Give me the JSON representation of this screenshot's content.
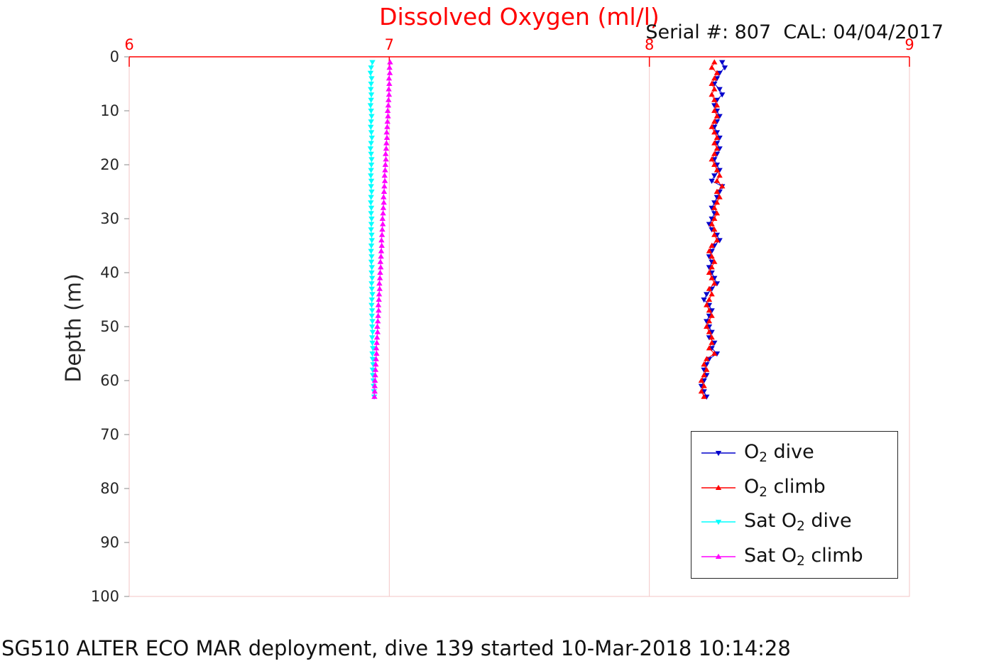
{
  "header": {
    "title": "Dissolved Oxygen (ml/l)",
    "serial": "Serial #: 807  CAL: 04/04/2017"
  },
  "caption": "SG510 ALTER ECO MAR deployment, dive 139 started 10-Mar-2018 10:14:28",
  "chart_data": {
    "type": "line",
    "title": "Dissolved Oxygen (ml/l)",
    "xlabel": "",
    "ylabel": "Depth (m)",
    "xlim": [
      6,
      9
    ],
    "ylim": [
      0,
      100
    ],
    "y_inverted": true,
    "x_ticks": [
      6,
      7,
      8,
      9
    ],
    "y_ticks": [
      0,
      10,
      20,
      30,
      40,
      50,
      60,
      70,
      80,
      90,
      100
    ],
    "grid": "vertical-only",
    "legend_position": "lower right",
    "style": {
      "x_axis_color": "#ff0000",
      "x_tick_label_color": "#ff0000",
      "y_tick_label_color": "#262626",
      "grid_color": "#f3c6c6",
      "box_color": "#f3c6c6"
    },
    "depths": [
      1,
      2,
      3,
      4,
      5,
      6,
      7,
      8,
      9,
      10,
      11,
      12,
      13,
      14,
      15,
      16,
      17,
      18,
      19,
      20,
      21,
      22,
      23,
      24,
      25,
      26,
      27,
      28,
      29,
      30,
      31,
      32,
      33,
      34,
      35,
      36,
      37,
      38,
      39,
      40,
      41,
      42,
      43,
      44,
      45,
      46,
      47,
      48,
      49,
      50,
      51,
      52,
      53,
      54,
      55,
      56,
      57,
      58,
      59,
      60,
      61,
      62,
      63
    ],
    "series": [
      {
        "name": "O2 dive",
        "label_pre": "O",
        "label_sub": "2",
        "label_post": " dive",
        "color": "#0000cc",
        "marker": "triangle-down",
        "values": [
          8.28,
          8.29,
          8.27,
          8.26,
          8.25,
          8.27,
          8.28,
          8.26,
          8.25,
          8.26,
          8.27,
          8.26,
          8.25,
          8.26,
          8.27,
          8.26,
          8.27,
          8.26,
          8.25,
          8.26,
          8.27,
          8.25,
          8.24,
          8.28,
          8.27,
          8.26,
          8.25,
          8.24,
          8.25,
          8.24,
          8.23,
          8.24,
          8.26,
          8.27,
          8.25,
          8.24,
          8.23,
          8.24,
          8.23,
          8.24,
          8.25,
          8.26,
          8.24,
          8.22,
          8.21,
          8.23,
          8.24,
          8.23,
          8.22,
          8.23,
          8.24,
          8.23,
          8.25,
          8.24,
          8.26,
          8.23,
          8.22,
          8.21,
          8.22,
          8.21,
          8.2,
          8.21,
          8.22
        ]
      },
      {
        "name": "O2 climb",
        "label_pre": "O",
        "label_sub": "2",
        "label_post": " climb",
        "color": "#ff0000",
        "marker": "triangle-up",
        "values": [
          8.25,
          8.24,
          8.26,
          8.25,
          8.24,
          8.25,
          8.24,
          8.25,
          8.26,
          8.25,
          8.26,
          8.25,
          8.24,
          8.25,
          8.26,
          8.25,
          8.26,
          8.25,
          8.24,
          8.25,
          8.26,
          8.27,
          8.26,
          8.28,
          8.26,
          8.27,
          8.26,
          8.25,
          8.26,
          8.25,
          8.24,
          8.25,
          8.25,
          8.26,
          8.24,
          8.23,
          8.24,
          8.25,
          8.24,
          8.23,
          8.24,
          8.25,
          8.23,
          8.24,
          8.23,
          8.22,
          8.23,
          8.24,
          8.23,
          8.22,
          8.23,
          8.24,
          8.24,
          8.23,
          8.25,
          8.22,
          8.21,
          8.22,
          8.21,
          8.2,
          8.21,
          8.2,
          8.21
        ]
      },
      {
        "name": "Sat O2 dive",
        "label_pre": "Sat O",
        "label_sub": "2",
        "label_post": " dive",
        "color": "#00ffff",
        "marker": "triangle-down",
        "values": [
          6.935,
          6.93,
          6.928,
          6.932,
          6.93,
          6.929,
          6.931,
          6.93,
          6.928,
          6.93,
          6.932,
          6.93,
          6.929,
          6.931,
          6.933,
          6.93,
          6.928,
          6.93,
          6.932,
          6.931,
          6.93,
          6.929,
          6.931,
          6.93,
          6.932,
          6.93,
          6.929,
          6.931,
          6.93,
          6.932,
          6.931,
          6.93,
          6.932,
          6.933,
          6.931,
          6.93,
          6.932,
          6.931,
          6.933,
          6.932,
          6.934,
          6.932,
          6.933,
          6.935,
          6.933,
          6.932,
          6.934,
          6.933,
          6.935,
          6.934,
          6.936,
          6.934,
          6.935,
          6.937,
          6.935,
          6.936,
          6.938,
          6.936,
          6.937,
          6.939,
          6.94,
          6.941,
          6.942
        ]
      },
      {
        "name": "Sat O2 climb",
        "label_pre": "Sat O",
        "label_sub": "2",
        "label_post": " climb",
        "color": "#ff00ff",
        "marker": "triangle-up",
        "values": [
          7.003,
          7.001,
          7.002,
          6.999,
          7.0,
          6.998,
          6.999,
          6.997,
          6.996,
          6.994,
          6.995,
          6.993,
          6.992,
          6.99,
          6.991,
          6.989,
          6.988,
          6.986,
          6.987,
          6.985,
          6.984,
          6.982,
          6.983,
          6.981,
          6.98,
          6.978,
          6.979,
          6.977,
          6.976,
          6.974,
          6.975,
          6.973,
          6.972,
          6.97,
          6.971,
          6.969,
          6.968,
          6.966,
          6.967,
          6.965,
          6.964,
          6.962,
          6.963,
          6.961,
          6.96,
          6.958,
          6.959,
          6.957,
          6.956,
          6.954,
          6.955,
          6.953,
          6.952,
          6.95,
          6.951,
          6.949,
          6.948,
          6.947,
          6.946,
          6.945,
          6.944,
          6.944,
          6.943
        ]
      }
    ]
  }
}
